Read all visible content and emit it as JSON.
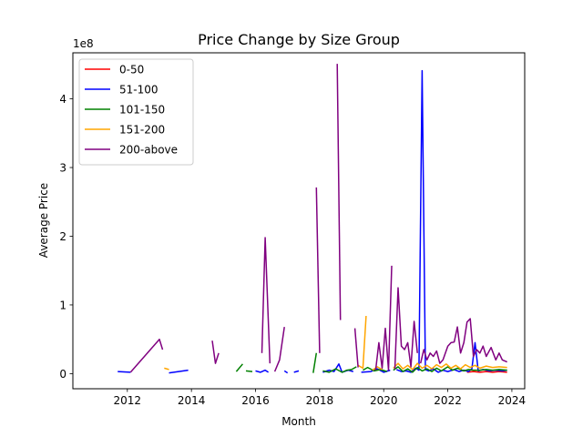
{
  "chart_data": {
    "type": "line",
    "title": "Price Change by Size Group",
    "xlabel": "Month",
    "ylabel": "Average Price",
    "y_scale_label": "1e8",
    "xlim": [
      2010.3,
      2024.4
    ],
    "ylim": [
      -0.22,
      4.67
    ],
    "x_ticks": [
      2012,
      2014,
      2016,
      2018,
      2020,
      2022,
      2024
    ],
    "x_tick_labels": [
      "2012",
      "2014",
      "2016",
      "2018",
      "2020",
      "2022",
      "2024"
    ],
    "y_ticks": [
      0,
      1,
      2,
      3,
      4
    ],
    "y_tick_labels": [
      "0",
      "1",
      "2",
      "3",
      "4"
    ],
    "legend_position": "top-left",
    "grid": false,
    "series": [
      {
        "name": "0-50",
        "color": "#ff0000",
        "segments": [
          [
            [
              2022.6,
              0.02
            ],
            [
              2022.8,
              0.03
            ],
            [
              2023.0,
              0.02
            ],
            [
              2023.2,
              0.03
            ],
            [
              2023.4,
              0.02
            ],
            [
              2023.6,
              0.03
            ],
            [
              2023.85,
              0.02
            ]
          ]
        ]
      },
      {
        "name": "51-100",
        "color": "#0000ff",
        "segments": [
          [
            [
              2011.7,
              0.03
            ],
            [
              2012.1,
              0.02
            ]
          ],
          [
            [
              2013.3,
              0.01
            ],
            [
              2013.9,
              0.05
            ]
          ],
          [
            [
              2016.0,
              0.04
            ],
            [
              2016.15,
              0.02
            ],
            [
              2016.3,
              0.05
            ],
            [
              2016.4,
              0.02
            ]
          ],
          [
            [
              2016.9,
              0.04
            ],
            [
              2017.0,
              0.01
            ]
          ],
          [
            [
              2017.2,
              0.02
            ],
            [
              2017.35,
              0.04
            ]
          ],
          [
            [
              2018.1,
              0.02
            ],
            [
              2018.3,
              0.05
            ],
            [
              2018.45,
              0.03
            ],
            [
              2018.6,
              0.14
            ],
            [
              2018.7,
              0.02
            ],
            [
              2018.9,
              0.05
            ],
            [
              2019.05,
              0.03
            ]
          ],
          [
            [
              2019.3,
              0.02
            ],
            [
              2019.6,
              0.03
            ],
            [
              2019.8,
              0.07
            ],
            [
              2020.0,
              0.02
            ],
            [
              2020.2,
              0.05
            ]
          ],
          [
            [
              2020.4,
              0.06
            ],
            [
              2020.55,
              0.03
            ],
            [
              2020.7,
              0.04
            ],
            [
              2020.85,
              0.02
            ],
            [
              2021.0,
              0.08
            ],
            [
              2021.1,
              0.05
            ],
            [
              2021.2,
              4.41
            ],
            [
              2021.3,
              0.06
            ],
            [
              2021.4,
              0.04
            ],
            [
              2021.55,
              0.07
            ],
            [
              2021.7,
              0.02
            ],
            [
              2021.85,
              0.05
            ],
            [
              2022.0,
              0.03
            ],
            [
              2022.2,
              0.06
            ],
            [
              2022.35,
              0.03
            ],
            [
              2022.5,
              0.05
            ],
            [
              2022.65,
              0.03
            ],
            [
              2022.75,
              0.07
            ],
            [
              2022.85,
              0.45
            ],
            [
              2022.95,
              0.04
            ],
            [
              2023.1,
              0.06
            ],
            [
              2023.3,
              0.04
            ],
            [
              2023.5,
              0.05
            ],
            [
              2023.7,
              0.04
            ],
            [
              2023.85,
              0.05
            ]
          ]
        ]
      },
      {
        "name": "101-150",
        "color": "#008000",
        "segments": [
          [
            [
              2015.4,
              0.03
            ],
            [
              2015.6,
              0.14
            ]
          ],
          [
            [
              2015.7,
              0.04
            ],
            [
              2015.9,
              0.03
            ]
          ],
          [
            [
              2017.8,
              0.01
            ],
            [
              2017.9,
              0.3
            ]
          ],
          [
            [
              2018.1,
              0.04
            ],
            [
              2018.3,
              0.02
            ],
            [
              2018.5,
              0.07
            ],
            [
              2018.7,
              0.02
            ],
            [
              2018.85,
              0.05
            ],
            [
              2019.0,
              0.06
            ],
            [
              2019.15,
              0.1
            ]
          ],
          [
            [
              2019.35,
              0.05
            ],
            [
              2019.5,
              0.09
            ],
            [
              2019.7,
              0.04
            ],
            [
              2019.9,
              0.06
            ],
            [
              2020.1,
              0.03
            ]
          ],
          [
            [
              2020.3,
              0.05
            ],
            [
              2020.45,
              0.1
            ],
            [
              2020.6,
              0.03
            ],
            [
              2020.75,
              0.07
            ],
            [
              2020.9,
              0.02
            ],
            [
              2021.05,
              0.09
            ],
            [
              2021.2,
              0.04
            ],
            [
              2021.35,
              0.07
            ],
            [
              2021.5,
              0.03
            ],
            [
              2021.65,
              0.08
            ],
            [
              2021.8,
              0.04
            ],
            [
              2022.0,
              0.1
            ],
            [
              2022.15,
              0.05
            ],
            [
              2022.3,
              0.08
            ],
            [
              2022.5,
              0.04
            ],
            [
              2022.65,
              0.06
            ],
            [
              2022.8,
              0.05
            ],
            [
              2023.0,
              0.05
            ],
            [
              2023.2,
              0.06
            ],
            [
              2023.4,
              0.05
            ],
            [
              2023.6,
              0.06
            ],
            [
              2023.85,
              0.05
            ]
          ]
        ]
      },
      {
        "name": "151-200",
        "color": "#ffa500",
        "segments": [
          [
            [
              2013.15,
              0.08
            ],
            [
              2013.3,
              0.06
            ]
          ],
          [
            [
              2019.2,
              0.12
            ],
            [
              2019.35,
              0.08
            ],
            [
              2019.45,
              0.84
            ]
          ],
          [
            [
              2019.65,
              0.05
            ],
            [
              2019.8,
              0.1
            ],
            [
              2019.95,
              0.06
            ]
          ],
          [
            [
              2020.3,
              0.08
            ],
            [
              2020.45,
              0.15
            ],
            [
              2020.6,
              0.07
            ],
            [
              2020.75,
              0.12
            ],
            [
              2020.9,
              0.06
            ],
            [
              2021.05,
              0.15
            ],
            [
              2021.2,
              0.08
            ],
            [
              2021.35,
              0.12
            ],
            [
              2021.5,
              0.07
            ],
            [
              2021.65,
              0.13
            ],
            [
              2021.8,
              0.09
            ],
            [
              2021.95,
              0.14
            ],
            [
              2022.1,
              0.08
            ],
            [
              2022.25,
              0.12
            ],
            [
              2022.4,
              0.07
            ],
            [
              2022.55,
              0.13
            ],
            [
              2022.7,
              0.09
            ],
            [
              2022.85,
              0.12
            ],
            [
              2023.0,
              0.08
            ],
            [
              2023.2,
              0.11
            ],
            [
              2023.4,
              0.09
            ],
            [
              2023.6,
              0.1
            ],
            [
              2023.85,
              0.09
            ]
          ]
        ]
      },
      {
        "name": "200-above",
        "color": "#800080",
        "segments": [
          [
            [
              2012.1,
              0.02
            ],
            [
              2013.0,
              0.5
            ],
            [
              2013.1,
              0.35
            ]
          ],
          [
            [
              2014.65,
              0.48
            ],
            [
              2014.75,
              0.15
            ],
            [
              2014.85,
              0.3
            ]
          ],
          [
            [
              2016.2,
              0.3
            ],
            [
              2016.3,
              1.98
            ],
            [
              2016.45,
              0.15
            ]
          ],
          [
            [
              2016.6,
              0.03
            ],
            [
              2016.75,
              0.2
            ],
            [
              2016.9,
              0.68
            ]
          ],
          [
            [
              2017.9,
              2.71
            ],
            [
              2018.0,
              0.3
            ]
          ],
          [
            [
              2018.55,
              4.51
            ],
            [
              2018.65,
              0.78
            ]
          ],
          [
            [
              2019.1,
              0.66
            ],
            [
              2019.2,
              0.09
            ]
          ],
          [
            [
              2019.75,
              0.05
            ],
            [
              2019.85,
              0.45
            ],
            [
              2019.95,
              0.08
            ],
            [
              2020.05,
              0.66
            ],
            [
              2020.15,
              0.05
            ],
            [
              2020.25,
              1.57
            ]
          ],
          [
            [
              2020.35,
              0.07
            ],
            [
              2020.45,
              1.25
            ],
            [
              2020.55,
              0.4
            ],
            [
              2020.65,
              0.35
            ],
            [
              2020.75,
              0.45
            ],
            [
              2020.85,
              0.1
            ],
            [
              2020.95,
              0.76
            ],
            [
              2021.05,
              0.3
            ]
          ],
          [
            [
              2021.15,
              0.15
            ],
            [
              2021.25,
              0.35
            ],
            [
              2021.35,
              0.2
            ],
            [
              2021.45,
              0.3
            ],
            [
              2021.55,
              0.25
            ],
            [
              2021.65,
              0.33
            ],
            [
              2021.75,
              0.15
            ],
            [
              2021.85,
              0.2
            ],
            [
              2022.0,
              0.4
            ],
            [
              2022.1,
              0.45
            ],
            [
              2022.2,
              0.46
            ],
            [
              2022.3,
              0.68
            ],
            [
              2022.4,
              0.3
            ],
            [
              2022.5,
              0.45
            ],
            [
              2022.6,
              0.75
            ],
            [
              2022.7,
              0.8
            ],
            [
              2022.8,
              0.25
            ],
            [
              2022.9,
              0.35
            ],
            [
              2023.0,
              0.3
            ],
            [
              2023.1,
              0.4
            ],
            [
              2023.2,
              0.25
            ],
            [
              2023.35,
              0.38
            ],
            [
              2023.5,
              0.2
            ],
            [
              2023.6,
              0.3
            ],
            [
              2023.7,
              0.2
            ],
            [
              2023.85,
              0.17
            ]
          ]
        ]
      }
    ]
  }
}
